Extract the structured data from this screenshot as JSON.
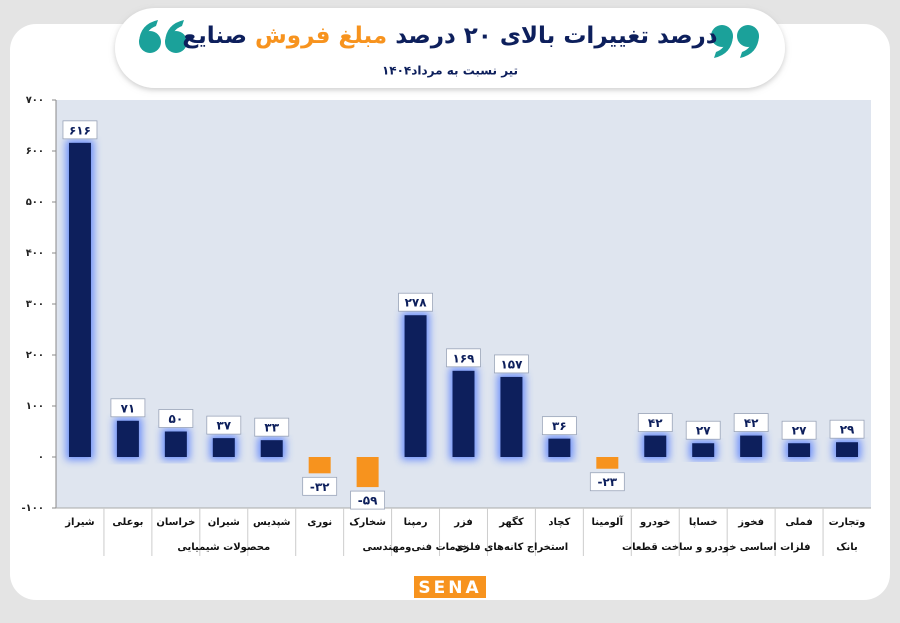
{
  "chart_data": {
    "type": "bar",
    "title_parts": [
      "درصد تغییرات بالای ۲۰ درصد",
      "مبلغ فروش",
      "صنایع"
    ],
    "subtitle": "تیر نسبت به مرداد۱۴۰۴",
    "categories": [
      "شیراز",
      "بوعلی",
      "خراسان",
      "شیران",
      "شپدیس",
      "نوری",
      "شخارک",
      "رمپنا",
      "فزر",
      "کگهر",
      "کچاد",
      "آلومینا",
      "خودرو",
      "خساپا",
      "فخوز",
      "فملی",
      "وتجارت"
    ],
    "category_groups": [
      "محصولات شیمیایی",
      "محصولات شیمیایی",
      "محصولات شیمیایی",
      "محصولات شیمیایی",
      "محصولات شیمیایی",
      "محصولات شیمیایی",
      "محصولات شیمیایی",
      "خدمات فنی‌ومهندسی",
      "استخراج کانه‌های فلزی",
      "استخراج کانه‌های فلزی",
      "استخراج کانه‌های فلزی",
      null,
      "خودرو و ساخت قطعات",
      "خودرو و ساخت قطعات",
      "فلزات اساسی",
      "فلزات اساسی",
      "بانک"
    ],
    "values": [
      616,
      71,
      50,
      37,
      33,
      -32,
      -59,
      278,
      169,
      157,
      36,
      -23,
      42,
      27,
      42,
      27,
      29
    ],
    "value_labels": [
      "۶۱۶",
      "۷۱",
      "۵۰",
      "۳۷",
      "۳۳",
      "-۳۲",
      "-۵۹",
      "۲۷۸",
      "۱۶۹",
      "۱۵۷",
      "۳۶",
      "-۲۳",
      "۴۲",
      "۲۷",
      "۴۲",
      "۲۷",
      "۲۹"
    ],
    "positive_color": "#0d1f5c",
    "negative_color": "#f7931e",
    "ylim": [
      -100,
      700
    ],
    "yticks": [
      {
        "value": -100,
        "label": "-۱۰۰"
      },
      {
        "value": 0,
        "label": "۰"
      },
      {
        "value": 100,
        "label": "۱۰۰"
      },
      {
        "value": 200,
        "label": "۲۰۰"
      },
      {
        "value": 300,
        "label": "۳۰۰"
      },
      {
        "value": 400,
        "label": "۴۰۰"
      },
      {
        "value": 500,
        "label": "۵۰۰"
      },
      {
        "value": 600,
        "label": "۶۰۰"
      },
      {
        "value": 700,
        "label": "۷۰۰"
      }
    ],
    "logo": "SENA"
  }
}
